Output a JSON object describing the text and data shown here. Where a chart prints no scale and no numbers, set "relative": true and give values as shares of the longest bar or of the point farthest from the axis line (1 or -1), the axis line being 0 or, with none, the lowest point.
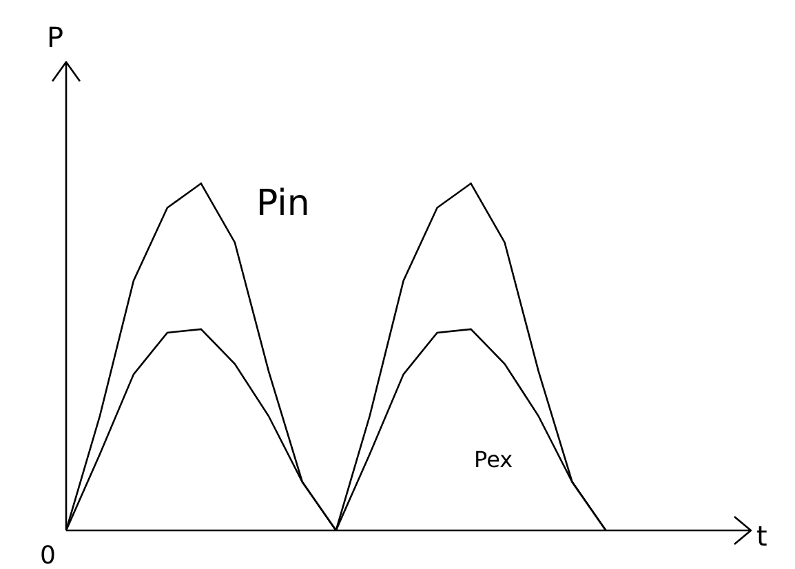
{
  "chart_data": {
    "type": "line",
    "relative": true,
    "xlabel": "t",
    "ylabel": "P",
    "annotations": [
      "0"
    ],
    "categories": [
      null,
      null,
      null,
      null,
      null,
      null,
      null,
      null,
      null,
      null,
      null,
      null,
      null,
      null,
      null,
      null,
      null
    ],
    "series": [
      {
        "name": "Pin",
        "color": "#000000",
        "values": [
          0,
          0.33,
          0.72,
          0.93,
          1,
          0.83,
          0.46,
          0.14,
          0,
          0.33,
          0.72,
          0.93,
          1,
          0.83,
          0.46,
          0.14,
          0
        ]
      },
      {
        "name": "Pex",
        "color": "#000000",
        "values": [
          0,
          0.22,
          0.45,
          0.57,
          0.58,
          0.48,
          0.33,
          0.14,
          0,
          0.22,
          0.45,
          0.57,
          0.58,
          0.48,
          0.33,
          0.14,
          0
        ]
      }
    ],
    "legend": false,
    "grid": false,
    "marker": "none",
    "line_style": "solid"
  }
}
